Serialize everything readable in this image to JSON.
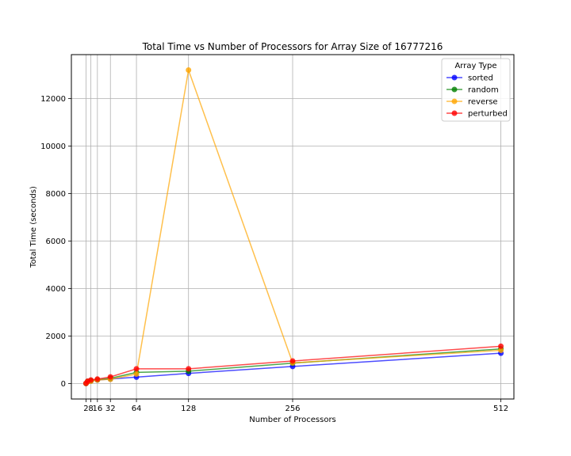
{
  "chart_data": {
    "type": "line",
    "title": "Total Time vs Number of Processors for Array Size of 16777216",
    "xlabel": "Number of Processors",
    "ylabel": "Total Time (seconds)",
    "x": [
      2,
      4,
      8,
      16,
      32,
      64,
      128,
      256,
      512
    ],
    "x_tick_labels": [
      "2",
      "8",
      "16",
      "32",
      "64",
      "128",
      "256",
      "512"
    ],
    "x_tick_values": [
      2,
      8,
      16,
      32,
      64,
      128,
      256,
      512
    ],
    "xlim": [
      -16,
      528
    ],
    "y_ticks": [
      0,
      2000,
      4000,
      6000,
      8000,
      10000,
      12000
    ],
    "ylim": [
      -650,
      13850
    ],
    "grid": true,
    "legend": {
      "title": "Array Type",
      "placement": "upper right"
    },
    "series": [
      {
        "name": "sorted",
        "color": "#0000ff",
        "values": [
          5,
          80,
          110,
          150,
          190,
          270,
          430,
          720,
          1280
        ]
      },
      {
        "name": "random",
        "color": "#008000",
        "values": [
          5,
          90,
          120,
          160,
          220,
          470,
          520,
          860,
          1460
        ]
      },
      {
        "name": "reverse",
        "color": "#ffa500",
        "values": [
          5,
          70,
          100,
          150,
          180,
          400,
          13200,
          870,
          1400
        ]
      },
      {
        "name": "perturbed",
        "color": "#ff0000",
        "values": [
          10,
          100,
          150,
          190,
          280,
          620,
          620,
          950,
          1570
        ]
      }
    ]
  }
}
